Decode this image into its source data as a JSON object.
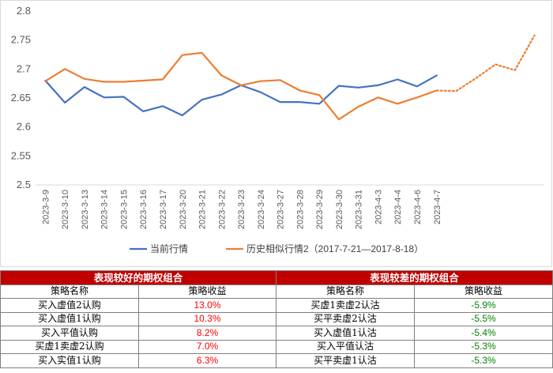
{
  "chart_data": {
    "type": "line",
    "ylim": [
      2.5,
      2.8
    ],
    "yticks": [
      "2.5",
      "2.55",
      "2.6",
      "2.65",
      "2.7",
      "2.75",
      "2.8"
    ],
    "categories": [
      "2023-3-9",
      "2023-3-10",
      "2023-3-13",
      "2023-3-14",
      "2023-3-15",
      "2023-3-16",
      "2023-3-17",
      "2023-3-20",
      "2023-3-21",
      "2023-3-22",
      "2023-3-23",
      "2023-3-24",
      "2023-3-27",
      "2023-3-28",
      "2023-3-29",
      "2023-3-30",
      "2023-3-31",
      "2023-4-3",
      "2023-4-4",
      "2023-4-6",
      "2023-4-7"
    ],
    "extra_points": 5,
    "series": [
      {
        "name": "当前行情",
        "color": "#4472c4",
        "values": [
          2.68,
          2.642,
          2.669,
          2.651,
          2.652,
          2.627,
          2.636,
          2.62,
          2.647,
          2.656,
          2.672,
          2.66,
          2.643,
          2.643,
          2.64,
          2.671,
          2.668,
          2.672,
          2.682,
          2.67,
          2.689
        ]
      },
      {
        "name": "历史相似行情2（2017-7-21—2017-8-18）",
        "color": "#ed7d31",
        "values": [
          2.679,
          2.7,
          2.683,
          2.678,
          2.678,
          2.68,
          2.682,
          2.724,
          2.728,
          2.689,
          2.672,
          2.679,
          2.681,
          2.663,
          2.655,
          2.613,
          2.635,
          2.651,
          2.64,
          2.651,
          2.663
        ],
        "projection": [
          2.663,
          2.662,
          2.684,
          2.708,
          2.698,
          2.758
        ]
      }
    ]
  },
  "tables": {
    "good": {
      "title": "表现较好的期权组合",
      "col_name": "策略名称",
      "col_return": "策略收益",
      "rows": [
        {
          "name": "买入虚值2认购",
          "ret": "13.0%"
        },
        {
          "name": "买入虚值1认购",
          "ret": "10.3%"
        },
        {
          "name": "买入平值认购",
          "ret": "8.2%"
        },
        {
          "name": "买虚1卖虚2认购",
          "ret": "7.0%"
        },
        {
          "name": "买入实值1认购",
          "ret": "6.3%"
        }
      ]
    },
    "bad": {
      "title": "表现较差的期权组合",
      "col_name": "策略名称",
      "col_return": "策略收益",
      "rows": [
        {
          "name": "买虚1卖虚2认沽",
          "ret": "-5.9%"
        },
        {
          "name": "买平卖虚2认沽",
          "ret": "-5.5%"
        },
        {
          "name": "买入虚值1认沽",
          "ret": "-5.4%"
        },
        {
          "name": "买入平值认沽",
          "ret": "-5.3%"
        },
        {
          "name": "买平卖虚1认沽",
          "ret": "-5.3%"
        }
      ]
    }
  }
}
